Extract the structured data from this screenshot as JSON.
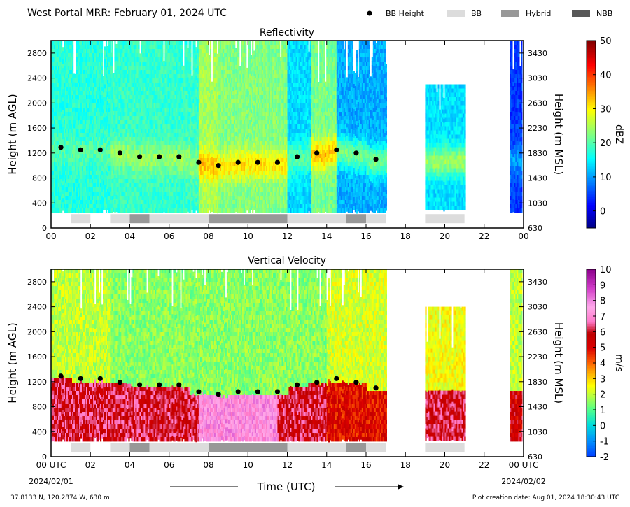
{
  "header": {
    "title": "West Portal MRR:  February 01, 2024 UTC",
    "legend": [
      {
        "label": "BB Height",
        "kind": "dot",
        "color": "#000000"
      },
      {
        "label": "BB",
        "kind": "box",
        "color": "#dcdcdc"
      },
      {
        "label": "Hybrid",
        "kind": "box",
        "color": "#989898"
      },
      {
        "label": "NBB",
        "kind": "box",
        "color": "#585858"
      }
    ]
  },
  "chart_data": [
    {
      "type": "heatmap",
      "title": "Reflectivity",
      "ylabel": "Height (m AGL)",
      "y2label": "Height (m MSL)",
      "xlim": [
        0,
        24
      ],
      "ylim": [
        0,
        3000
      ],
      "xticks": [
        "00",
        "02",
        "04",
        "06",
        "08",
        "10",
        "12",
        "14",
        "16",
        "18",
        "20",
        "22",
        "00"
      ],
      "yticks": [
        0,
        400,
        800,
        1200,
        1600,
        2000,
        2400,
        2800
      ],
      "y2ticks": [
        630,
        1030,
        1430,
        1830,
        2230,
        2630,
        3030,
        3430
      ],
      "colorbar": {
        "label": "dBZ",
        "min": -5,
        "max": 50,
        "ticks": [
          0,
          10,
          20,
          30,
          40,
          50
        ],
        "colormap": "jet"
      },
      "bb_height": [
        {
          "x": 0.5,
          "y": 1290
        },
        {
          "x": 1.5,
          "y": 1250
        },
        {
          "x": 2.5,
          "y": 1250
        },
        {
          "x": 3.5,
          "y": 1200
        },
        {
          "x": 4.5,
          "y": 1140
        },
        {
          "x": 5.5,
          "y": 1140
        },
        {
          "x": 6.5,
          "y": 1140
        },
        {
          "x": 7.5,
          "y": 1050
        },
        {
          "x": 8.5,
          "y": 1000
        },
        {
          "x": 9.5,
          "y": 1050
        },
        {
          "x": 10.5,
          "y": 1050
        },
        {
          "x": 11.5,
          "y": 1050
        },
        {
          "x": 12.5,
          "y": 1140
        },
        {
          "x": 13.5,
          "y": 1200
        },
        {
          "x": 14.5,
          "y": 1250
        },
        {
          "x": 15.5,
          "y": 1200
        },
        {
          "x": 16.5,
          "y": 1100
        }
      ],
      "classification": [
        {
          "start": 1,
          "end": 2,
          "type": "BB"
        },
        {
          "start": 3,
          "end": 4,
          "type": "BB"
        },
        {
          "start": 4,
          "end": 5,
          "type": "Hybrid"
        },
        {
          "start": 5,
          "end": 8,
          "type": "BB"
        },
        {
          "start": 8,
          "end": 12,
          "type": "Hybrid"
        },
        {
          "start": 12,
          "end": 15,
          "type": "BB"
        },
        {
          "start": 15,
          "end": 16,
          "type": "Hybrid"
        },
        {
          "start": 16,
          "end": 17,
          "type": "BB"
        },
        {
          "start": 19,
          "end": 21,
          "type": "BB"
        }
      ],
      "segments": [
        {
          "x0": 0.0,
          "x1": 3.0,
          "top": 3000,
          "low": 16,
          "high": 20
        },
        {
          "x0": 3.0,
          "x1": 7.5,
          "top": 3000,
          "low": 15,
          "high": 24
        },
        {
          "x0": 7.5,
          "x1": 8.5,
          "top": 3000,
          "low": 20,
          "high": 33
        },
        {
          "x0": 8.5,
          "x1": 12.0,
          "top": 3000,
          "low": 18,
          "high": 31
        },
        {
          "x0": 12.0,
          "x1": 13.2,
          "top": 3000,
          "low": 10,
          "high": 20
        },
        {
          "x0": 13.2,
          "x1": 14.5,
          "top": 3000,
          "low": 16,
          "high": 33
        },
        {
          "x0": 14.5,
          "x1": 17.0,
          "top": 3000,
          "low": 5,
          "high": 22
        },
        {
          "x0": 19.0,
          "x1": 21.0,
          "top": 2300,
          "low": 8,
          "high": 24
        },
        {
          "x0": 23.3,
          "x1": 23.9,
          "top": 3000,
          "low": 2,
          "high": 10
        }
      ]
    },
    {
      "type": "heatmap",
      "title": "Vertical Velocity",
      "ylabel": "Height (m AGL)",
      "y2label": "Height (m MSL)",
      "xlabel": "Time (UTC)",
      "xlim": [
        0,
        24
      ],
      "ylim": [
        0,
        3000
      ],
      "xticks": [
        "00 UTC",
        "02",
        "04",
        "06",
        "08",
        "10",
        "12",
        "14",
        "16",
        "18",
        "20",
        "22",
        "00 UTC"
      ],
      "x_date_start": "2024/02/01",
      "x_date_end": "2024/02/02",
      "yticks": [
        0,
        400,
        800,
        1200,
        1600,
        2000,
        2400,
        2800
      ],
      "y2ticks": [
        630,
        1030,
        1430,
        1830,
        2230,
        2630,
        3030,
        3430
      ],
      "colorbar": {
        "label": "m/s",
        "min": -2,
        "max": 10,
        "ticks": [
          -2,
          -1,
          0,
          1,
          2,
          3,
          4,
          5,
          6,
          7,
          8,
          9,
          10
        ],
        "colormap": "velocity"
      },
      "bb_height": [
        {
          "x": 0.5,
          "y": 1290
        },
        {
          "x": 1.5,
          "y": 1250
        },
        {
          "x": 2.5,
          "y": 1250
        },
        {
          "x": 3.5,
          "y": 1190
        },
        {
          "x": 4.5,
          "y": 1150
        },
        {
          "x": 5.5,
          "y": 1150
        },
        {
          "x": 6.5,
          "y": 1150
        },
        {
          "x": 7.5,
          "y": 1040
        },
        {
          "x": 8.5,
          "y": 1000
        },
        {
          "x": 9.5,
          "y": 1040
        },
        {
          "x": 10.5,
          "y": 1040
        },
        {
          "x": 11.5,
          "y": 1040
        },
        {
          "x": 12.5,
          "y": 1150
        },
        {
          "x": 13.5,
          "y": 1190
        },
        {
          "x": 14.5,
          "y": 1250
        },
        {
          "x": 15.5,
          "y": 1190
        },
        {
          "x": 16.5,
          "y": 1100
        }
      ],
      "classification": [
        {
          "start": 1,
          "end": 2,
          "type": "BB"
        },
        {
          "start": 3,
          "end": 4,
          "type": "BB"
        },
        {
          "start": 4,
          "end": 5,
          "type": "Hybrid"
        },
        {
          "start": 5,
          "end": 8,
          "type": "BB"
        },
        {
          "start": 8,
          "end": 12,
          "type": "Hybrid"
        },
        {
          "start": 12,
          "end": 15,
          "type": "BB"
        },
        {
          "start": 15,
          "end": 16,
          "type": "Hybrid"
        },
        {
          "start": 16,
          "end": 17,
          "type": "BB"
        },
        {
          "start": 19,
          "end": 21,
          "type": "BB"
        }
      ],
      "segments": [
        {
          "x0": 0.0,
          "x1": 3.0,
          "top": 3000,
          "below": 6.0,
          "above": 2.0
        },
        {
          "x0": 3.0,
          "x1": 7.5,
          "top": 3000,
          "below": 6.0,
          "above": 1.5
        },
        {
          "x0": 7.5,
          "x1": 11.5,
          "top": 3000,
          "below": 7.5,
          "above": 1.5
        },
        {
          "x0": 11.5,
          "x1": 14.0,
          "top": 3000,
          "below": 6.0,
          "above": 1.5
        },
        {
          "x0": 14.0,
          "x1": 17.0,
          "top": 3000,
          "below": 5.0,
          "above": 2.2
        },
        {
          "x0": 19.0,
          "x1": 21.0,
          "top": 2400,
          "below": 6.0,
          "above": 2.5
        },
        {
          "x0": 23.3,
          "x1": 23.9,
          "top": 3000,
          "below": 5.5,
          "above": 2.0
        }
      ]
    }
  ],
  "footer": {
    "location": "37.8133 N, 120.2874 W, 630 m",
    "creation": "Plot creation date: Aug 01, 2024 18:30:43 UTC"
  }
}
